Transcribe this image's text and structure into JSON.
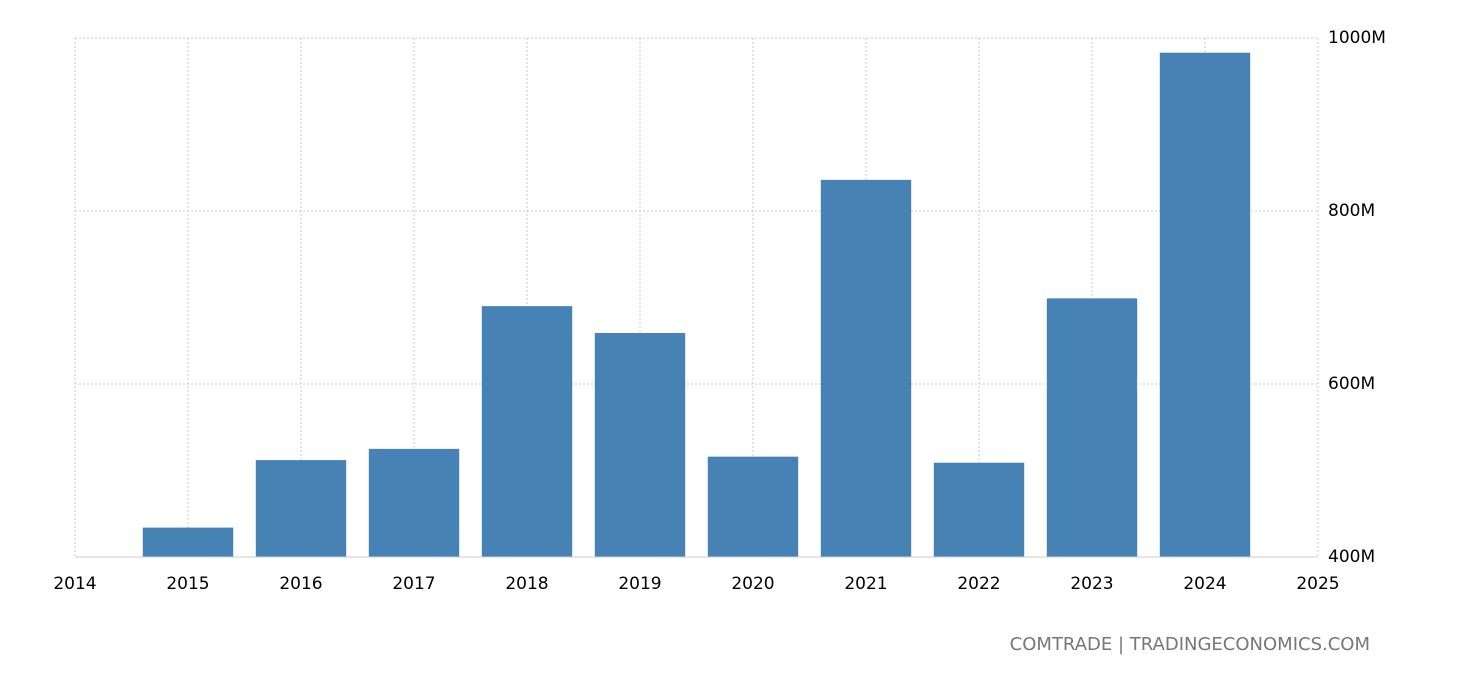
{
  "chart_data": {
    "type": "bar",
    "source": "COMTRADE | TRADINGECONOMICS.COM",
    "x": [
      2015,
      2016,
      2017,
      2018,
      2019,
      2020,
      2021,
      2022,
      2023,
      2024
    ],
    "values": [
      434,
      512,
      525,
      690,
      659,
      516,
      836,
      509,
      699,
      983
    ],
    "color": "#4682b4",
    "xlim": [
      2014,
      2025
    ],
    "xticks": [
      2014,
      2015,
      2016,
      2017,
      2018,
      2019,
      2020,
      2021,
      2022,
      2023,
      2024,
      2025
    ],
    "ylim": [
      400,
      1000
    ],
    "yticks": [
      {
        "value": 400,
        "label": "400M"
      },
      {
        "value": 600,
        "label": "600M"
      },
      {
        "value": 800,
        "label": "800M"
      },
      {
        "value": 1000,
        "label": "1000M"
      }
    ],
    "grid": true
  }
}
